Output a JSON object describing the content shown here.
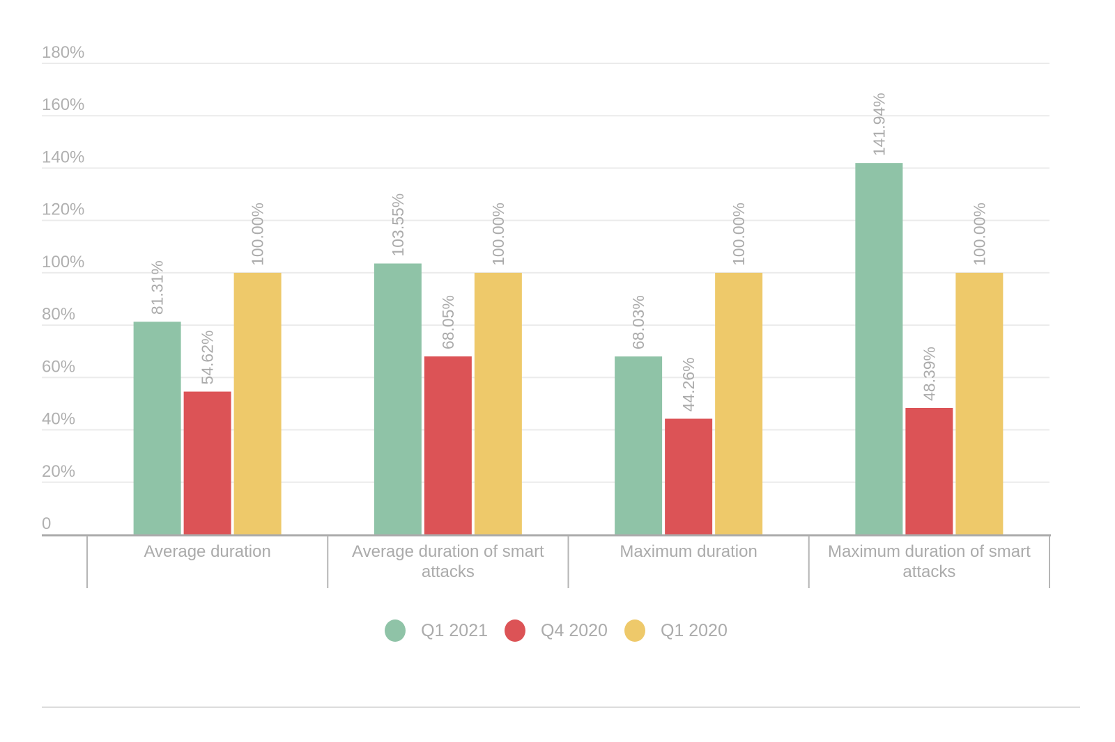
{
  "chart_data": {
    "type": "bar",
    "title": "",
    "xlabel": "",
    "ylabel": "",
    "ylim": [
      0,
      180
    ],
    "yticks": [
      0,
      20,
      40,
      60,
      80,
      100,
      120,
      140,
      160,
      180
    ],
    "ytick_labels": [
      "0",
      "20%",
      "40%",
      "60%",
      "80%",
      "100%",
      "120%",
      "140%",
      "160%",
      "180%"
    ],
    "grid": true,
    "legend_position": "bottom-center",
    "categories": [
      [
        "Average duration"
      ],
      [
        "Average duration of smart",
        "attacks"
      ],
      [
        "Maximum duration"
      ],
      [
        "Maximum duration of smart",
        "attacks"
      ]
    ],
    "series": [
      {
        "name": "Q1 2021",
        "color": "#8fc3a7",
        "values": [
          81.31,
          103.55,
          68.03,
          141.94
        ],
        "labels": [
          "81.31%",
          "103.55%",
          "68.03%",
          "141.94%"
        ]
      },
      {
        "name": "Q4 2020",
        "color": "#dc5356",
        "values": [
          54.62,
          68.05,
          44.26,
          48.39
        ],
        "labels": [
          "54.62%",
          "68.05%",
          "44.26%",
          "48.39%"
        ]
      },
      {
        "name": "Q1 2020",
        "color": "#eec96a",
        "values": [
          100.0,
          100.0,
          100.0,
          100.0
        ],
        "labels": [
          "100.00%",
          "100.00%",
          "100.00%",
          "100.00%"
        ]
      }
    ]
  },
  "legend": [
    {
      "label": "Q1 2021",
      "color": "#8fc3a7"
    },
    {
      "label": "Q4 2020",
      "color": "#dc5356"
    },
    {
      "label": "Q1 2020",
      "color": "#eec96a"
    }
  ]
}
